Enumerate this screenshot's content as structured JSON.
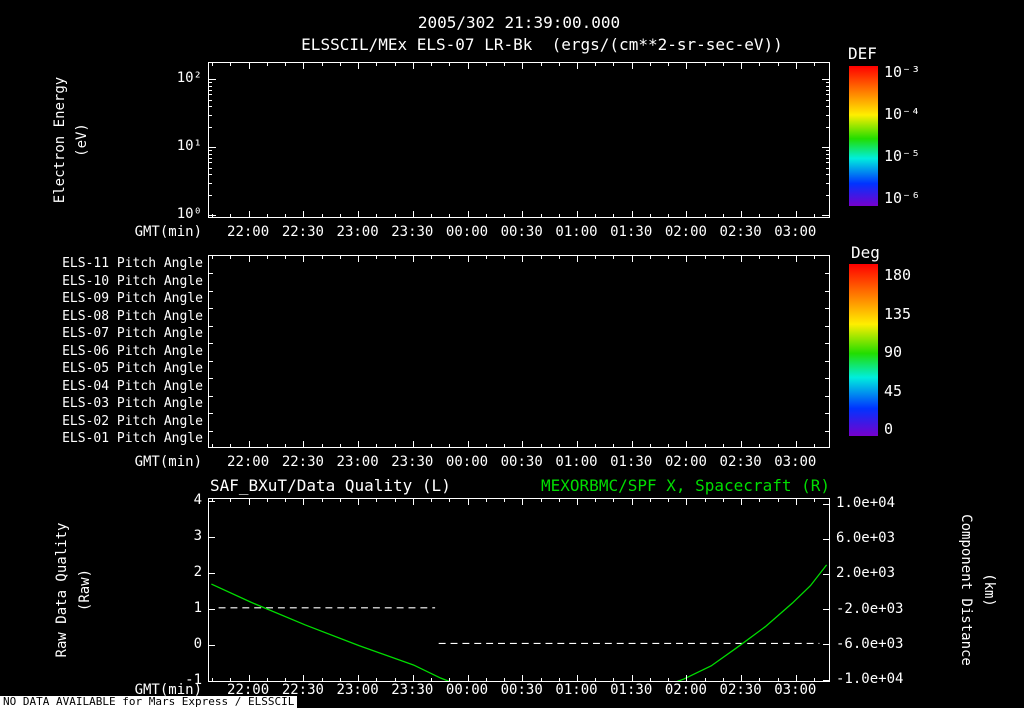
{
  "header": {
    "timestamp": "2005/302 21:39:00.000",
    "title": "ELSSCIL/MEx ELS-07 LR-Bk  (ergs/(cm**2-sr-sec-eV))"
  },
  "time_axis": {
    "label": "GMT(min)",
    "ticks": [
      "22:00",
      "22:30",
      "23:00",
      "23:30",
      "00:00",
      "00:30",
      "01:00",
      "01:30",
      "02:00",
      "02:30",
      "03:00"
    ]
  },
  "panel_energy": {
    "ylabel_line1": "Electron Energy",
    "ylabel_line2": "(eV)",
    "ytick_labels": [
      "10²",
      "10¹",
      "10⁰"
    ],
    "colorbar_title": "DEF",
    "colorbar_tick_labels": [
      "10⁻³",
      "10⁻⁴",
      "10⁻⁵",
      "10⁻⁶"
    ]
  },
  "panel_pitch": {
    "row_labels": [
      "ELS-11 Pitch Angle",
      "ELS-10 Pitch Angle",
      "ELS-09 Pitch Angle",
      "ELS-08 Pitch Angle",
      "ELS-07 Pitch Angle",
      "ELS-06 Pitch Angle",
      "ELS-05 Pitch Angle",
      "ELS-04 Pitch Angle",
      "ELS-03 Pitch Angle",
      "ELS-02 Pitch Angle",
      "ELS-01 Pitch Angle"
    ],
    "colorbar_title": "Deg",
    "colorbar_tick_labels": [
      "180",
      "135",
      "90",
      "45",
      "0"
    ]
  },
  "panel_quality": {
    "left_title": "SAF_BXuT/Data Quality (L)",
    "right_title": "MEXORBMC/SPF X, Spacecraft (R)",
    "left_ylabel_line1": "Raw Data Quality",
    "left_ylabel_line2": "(Raw)",
    "left_ytick_labels": [
      "4",
      "3",
      "2",
      "1",
      "0",
      "-1"
    ],
    "right_ylabel_line1": "Component Distance",
    "right_ylabel_line2": "(km)",
    "right_ytick_labels": [
      "1.0e+04",
      "6.0e+03",
      "2.0e+03",
      "-2.0e+03",
      "-6.0e+03",
      "-1.0e+04"
    ]
  },
  "footer": {
    "no_data_message": "NO DATA AVAILABLE for Mars Express / ELSSCIL"
  },
  "colors": {
    "background": "#000000",
    "foreground": "#ffffff",
    "spacecraft_green": "#00dd00"
  },
  "chart_data": [
    {
      "type": "heatmap",
      "title": "ELSSCIL/MEx ELS-07 LR-Bk (ergs/(cm**2-sr-sec-eV))",
      "xlabel": "GMT(min)",
      "x_ticks": [
        "22:00",
        "22:30",
        "23:00",
        "23:30",
        "00:00",
        "00:30",
        "01:00",
        "01:30",
        "02:00",
        "02:30",
        "03:00"
      ],
      "x_range": [
        "21:38",
        "03:19"
      ],
      "ylabel": "Electron Energy (eV)",
      "y_scale": "log",
      "y_ticks": [
        1,
        10,
        100
      ],
      "colorbar_label": "DEF",
      "colorbar_ticks": [
        0.001,
        0.0001,
        1e-05,
        1e-06
      ],
      "values": []
    },
    {
      "type": "heatmap",
      "title": "Pitch Angle rows ELS-11 .. ELS-01",
      "rows": [
        "ELS-11",
        "ELS-10",
        "ELS-09",
        "ELS-08",
        "ELS-07",
        "ELS-06",
        "ELS-05",
        "ELS-04",
        "ELS-03",
        "ELS-02",
        "ELS-01"
      ],
      "row_suffix": "Pitch Angle",
      "xlabel": "GMT(min)",
      "x_ticks": [
        "22:00",
        "22:30",
        "23:00",
        "23:30",
        "00:00",
        "00:30",
        "01:00",
        "01:30",
        "02:00",
        "02:30",
        "03:00"
      ],
      "colorbar_label": "Deg",
      "colorbar_ticks": [
        180,
        135,
        90,
        45,
        0
      ],
      "values": []
    },
    {
      "type": "line",
      "xlabel": "GMT(min)",
      "x_ticks": [
        "22:00",
        "22:30",
        "23:00",
        "23:30",
        "00:00",
        "00:30",
        "01:00",
        "01:30",
        "02:00",
        "02:30",
        "03:00"
      ],
      "x_range": [
        "21:38",
        "03:19"
      ],
      "x_span_minutes": 341,
      "left_axis": {
        "label": "Raw Data Quality (Raw)",
        "lim": [
          -1,
          4
        ],
        "ticks": [
          4,
          3,
          2,
          1,
          0,
          -1
        ]
      },
      "right_axis": {
        "label": "Component Distance (km)",
        "lim": [
          -10000,
          10000
        ],
        "ticks": [
          10000,
          6000,
          2000,
          -2000,
          -6000,
          -10000
        ]
      },
      "series": [
        {
          "name": "SAF_BXuT/Data Quality (L)",
          "axis": "left",
          "color": "#ffffff",
          "style": "dashed",
          "segments": [
            {
              "value": 1,
              "t_start_min": 4,
              "t_end_min": 124
            },
            {
              "value": 0,
              "t_start_min": 126,
              "t_end_min": 337
            }
          ]
        },
        {
          "name": "MEXORBMC/SPF X, Spacecraft (R)",
          "axis": "right",
          "color": "#00dd00",
          "style": "solid",
          "points_min_km": [
            [
              0,
              800
            ],
            [
              22,
              -1300
            ],
            [
              52,
              -3900
            ],
            [
              82,
              -6300
            ],
            [
              112,
              -8500
            ],
            [
              127,
              -10000
            ],
            [
              142,
              -11200
            ],
            [
              172,
              -12800
            ],
            [
              195,
              -13300
            ],
            [
              217,
              -13000
            ],
            [
              232,
              -12400
            ],
            [
              262,
              -10100
            ],
            [
              277,
              -8600
            ],
            [
              292,
              -6400
            ],
            [
              307,
              -4100
            ],
            [
              322,
              -1400
            ],
            [
              332,
              600
            ],
            [
              341,
              3000
            ]
          ]
        }
      ]
    }
  ]
}
